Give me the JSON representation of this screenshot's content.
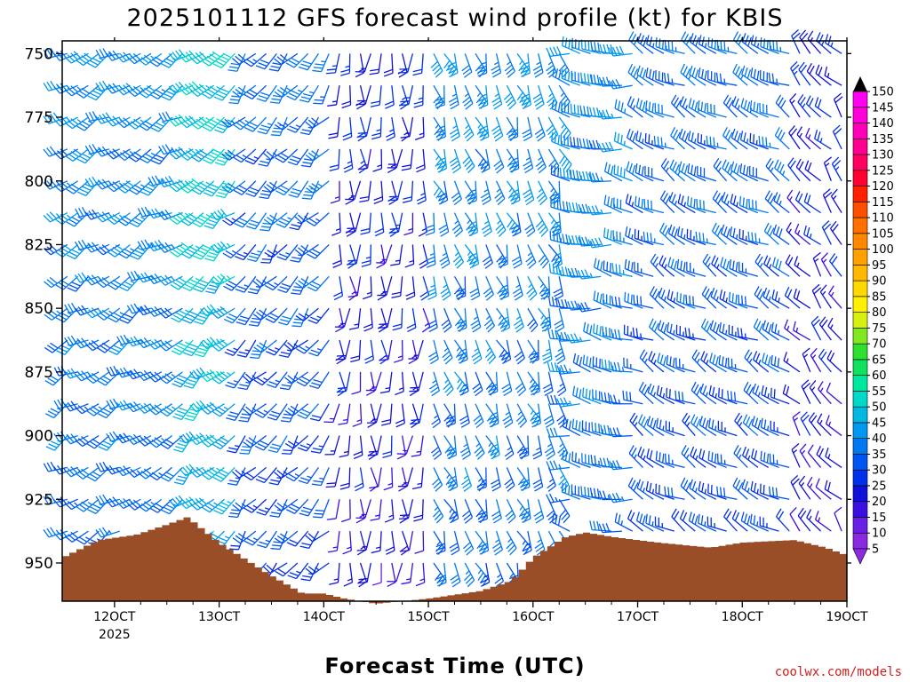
{
  "chart_data": {
    "type": "wind-barb-time-height",
    "title": "2025101112 GFS forecast wind profile (kt) for KBIS",
    "xlabel": "Forecast Time (UTC)",
    "credit": "coolwx.com/models",
    "x_ticks": [
      "12OCT",
      "13OCT",
      "14OCT",
      "15OCT",
      "16OCT",
      "17OCT",
      "18OCT",
      "19OCT"
    ],
    "x_year": "2025",
    "y_ticks": [
      750,
      775,
      800,
      825,
      850,
      875,
      900,
      925,
      950
    ],
    "ylim": [
      965,
      745
    ],
    "xlim_days": [
      11.5,
      19.0
    ],
    "colorbar": {
      "levels": [
        5,
        10,
        15,
        20,
        25,
        30,
        35,
        40,
        45,
        50,
        55,
        60,
        65,
        70,
        75,
        80,
        85,
        90,
        95,
        100,
        105,
        110,
        115,
        120,
        125,
        130,
        135,
        140,
        145,
        150
      ],
      "colors": [
        "#8a2be2",
        "#6a1fe6",
        "#3a10e0",
        "#1010d8",
        "#0030e8",
        "#0055f0",
        "#0078f0",
        "#0098f0",
        "#00b8e0",
        "#00d8c8",
        "#00e8a0",
        "#10e060",
        "#30e030",
        "#80e820",
        "#d8f010",
        "#fff000",
        "#ffd800",
        "#ffb800",
        "#ffa000",
        "#ff8800",
        "#ff7000",
        "#ff5000",
        "#ff2000",
        "#ff0030",
        "#ff0060",
        "#ff0090",
        "#ff00b8",
        "#ff00d8",
        "#ff00f0",
        "#000000"
      ]
    },
    "terrain_color": "#9a4e28",
    "terrain_surface_pressure": [
      {
        "t": 11.5,
        "p": 948
      },
      {
        "t": 11.85,
        "p": 941
      },
      {
        "t": 12.2,
        "p": 939
      },
      {
        "t": 12.5,
        "p": 935
      },
      {
        "t": 12.7,
        "p": 932
      },
      {
        "t": 13.0,
        "p": 942
      },
      {
        "t": 13.5,
        "p": 955
      },
      {
        "t": 13.8,
        "p": 962
      },
      {
        "t": 14.0,
        "p": 962
      },
      {
        "t": 14.2,
        "p": 964
      },
      {
        "t": 14.5,
        "p": 966
      },
      {
        "t": 15.0,
        "p": 964
      },
      {
        "t": 15.5,
        "p": 961
      },
      {
        "t": 15.8,
        "p": 957
      },
      {
        "t": 16.0,
        "p": 948
      },
      {
        "t": 16.3,
        "p": 940
      },
      {
        "t": 16.5,
        "p": 938
      },
      {
        "t": 16.8,
        "p": 940
      },
      {
        "t": 17.2,
        "p": 942
      },
      {
        "t": 17.7,
        "p": 944
      },
      {
        "t": 18.0,
        "p": 942
      },
      {
        "t": 18.5,
        "p": 941
      },
      {
        "t": 18.8,
        "p": 944
      },
      {
        "t": 19.0,
        "p": 947
      }
    ],
    "wind_regimes": [
      {
        "t_start": 11.5,
        "t_end": 12.7,
        "dir_deg": 240,
        "speed_kt": 30
      },
      {
        "t_start": 12.7,
        "t_end": 13.2,
        "dir_deg": 230,
        "speed_kt": 40
      },
      {
        "t_start": 13.2,
        "t_end": 14.1,
        "dir_deg": 220,
        "speed_kt": 25
      },
      {
        "t_start": 14.1,
        "t_end": 15.0,
        "dir_deg": 180,
        "speed_kt": 15
      },
      {
        "t_start": 15.0,
        "t_end": 16.3,
        "dir_deg": 160,
        "speed_kt": 30
      },
      {
        "t_start": 16.3,
        "t_end": 17.0,
        "dir_deg": 280,
        "speed_kt": 30
      },
      {
        "t_start": 17.0,
        "t_end": 18.5,
        "dir_deg": 300,
        "speed_kt": 25
      },
      {
        "t_start": 18.5,
        "t_end": 19.0,
        "dir_deg": 320,
        "speed_kt": 15
      }
    ]
  }
}
